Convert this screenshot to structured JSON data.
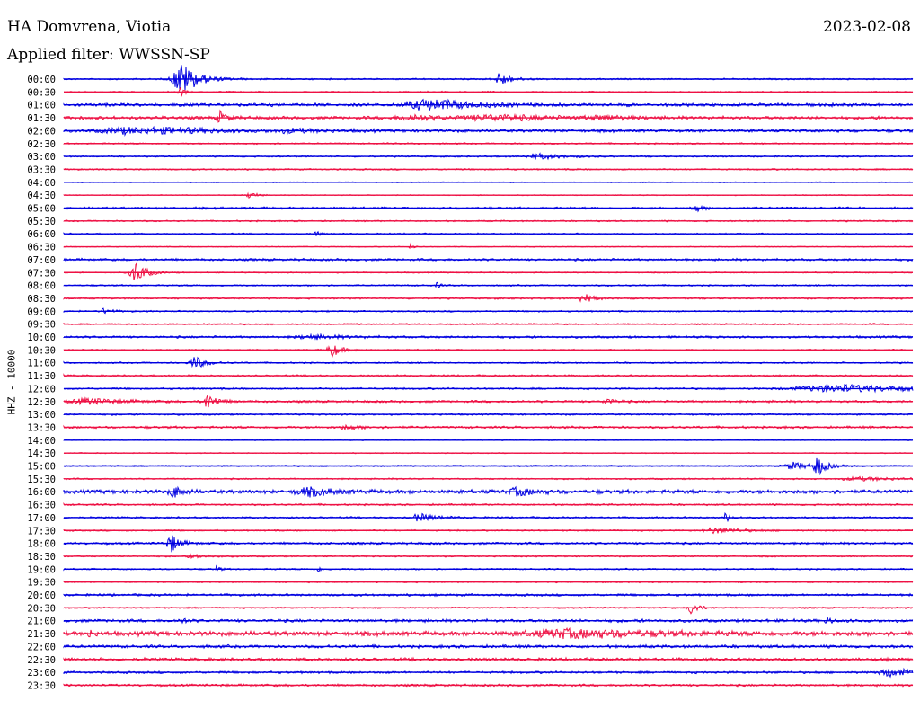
{
  "header": {
    "station": "HA Domvrena, Viotia",
    "date": "2023-02-08",
    "filter": "Applied filter: WWSSN-SP"
  },
  "chart_data": {
    "type": "line",
    "title": "HA Domvrena, Viotia",
    "ylabel": "HHZ - 10000",
    "colors": [
      "#0000e0",
      "#ee1144"
    ],
    "rows": [
      "00:00",
      "00:30",
      "01:00",
      "01:30",
      "02:00",
      "02:30",
      "03:00",
      "03:30",
      "04:00",
      "04:30",
      "05:00",
      "05:30",
      "06:00",
      "06:30",
      "07:00",
      "07:30",
      "08:00",
      "08:30",
      "09:00",
      "09:30",
      "10:00",
      "10:30",
      "11:00",
      "11:30",
      "12:00",
      "12:30",
      "13:00",
      "13:30",
      "14:00",
      "14:30",
      "15:00",
      "15:30",
      "16:00",
      "16:30",
      "17:00",
      "17:30",
      "18:00",
      "18:30",
      "19:00",
      "19:30",
      "20:00",
      "20:30",
      "21:00",
      "21:30",
      "22:00",
      "22:30",
      "23:00",
      "23:30"
    ],
    "noise": [
      1,
      1,
      2,
      2,
      2,
      1,
      1,
      1,
      0.6,
      0.6,
      1.5,
      1,
      1,
      0.6,
      1.5,
      0.8,
      1,
      1.2,
      1,
      1,
      1.5,
      1,
      1,
      1.2,
      1.2,
      1.5,
      1.2,
      1.5,
      0.6,
      0.6,
      1,
      1,
      2.5,
      1.2,
      1.2,
      1,
      1.5,
      1,
      1,
      1,
      1.5,
      1,
      2,
      3,
      2,
      2,
      1.5,
      1.5
    ],
    "events": [
      {
        "row": 0,
        "x": 0.139,
        "amp": 18,
        "width": 0.02
      },
      {
        "row": 0,
        "x": 0.515,
        "amp": 8,
        "width": 0.012
      },
      {
        "row": 1,
        "x": 0.138,
        "amp": 5,
        "width": 0.005
      },
      {
        "row": 2,
        "x": 0.432,
        "amp": 6,
        "width": 0.05
      },
      {
        "row": 3,
        "x": 0.185,
        "amp": 7,
        "width": 0.008
      },
      {
        "row": 3,
        "x": 0.408,
        "amp": 3,
        "width": 0.03
      },
      {
        "row": 3,
        "x": 0.51,
        "amp": 3,
        "width": 0.07
      },
      {
        "row": 3,
        "x": 0.635,
        "amp": 2,
        "width": 0.03
      },
      {
        "row": 4,
        "x": 0.07,
        "amp": 3,
        "width": 0.05
      },
      {
        "row": 4,
        "x": 0.13,
        "amp": 2,
        "width": 0.07
      },
      {
        "row": 4,
        "x": 0.27,
        "amp": 2,
        "width": 0.03
      },
      {
        "row": 6,
        "x": 0.56,
        "amp": 3,
        "width": 0.03
      },
      {
        "row": 9,
        "x": 0.22,
        "amp": 5,
        "width": 0.007
      },
      {
        "row": 10,
        "x": 0.744,
        "amp": 4,
        "width": 0.008
      },
      {
        "row": 12,
        "x": 0.298,
        "amp": 3,
        "width": 0.005
      },
      {
        "row": 13,
        "x": 0.409,
        "amp": 4,
        "width": 0.003
      },
      {
        "row": 15,
        "x": 0.085,
        "amp": 13,
        "width": 0.012
      },
      {
        "row": 16,
        "x": 0.44,
        "amp": 3,
        "width": 0.004
      },
      {
        "row": 17,
        "x": 0.612,
        "amp": 5,
        "width": 0.012
      },
      {
        "row": 18,
        "x": 0.048,
        "amp": 3,
        "width": 0.01
      },
      {
        "row": 20,
        "x": 0.295,
        "amp": 2,
        "width": 0.04
      },
      {
        "row": 21,
        "x": 0.316,
        "amp": 8,
        "width": 0.01
      },
      {
        "row": 22,
        "x": 0.155,
        "amp": 7,
        "width": 0.012
      },
      {
        "row": 24,
        "x": 0.92,
        "amp": 4,
        "width": 0.1
      },
      {
        "row": 25,
        "x": 0.17,
        "amp": 9,
        "width": 0.01
      },
      {
        "row": 25,
        "x": 0.03,
        "amp": 3,
        "width": 0.04
      },
      {
        "row": 25,
        "x": 0.64,
        "amp": 3,
        "width": 0.01
      },
      {
        "row": 27,
        "x": 0.335,
        "amp": 2,
        "width": 0.02
      },
      {
        "row": 30,
        "x": 0.888,
        "amp": 10,
        "width": 0.01
      },
      {
        "row": 30,
        "x": 0.86,
        "amp": 4,
        "width": 0.02
      },
      {
        "row": 31,
        "x": 0.94,
        "amp": 2,
        "width": 0.04
      },
      {
        "row": 32,
        "x": 0.13,
        "amp": 6,
        "width": 0.01
      },
      {
        "row": 32,
        "x": 0.29,
        "amp": 4,
        "width": 0.03
      },
      {
        "row": 32,
        "x": 0.535,
        "amp": 4,
        "width": 0.02
      },
      {
        "row": 34,
        "x": 0.42,
        "amp": 4,
        "width": 0.02
      },
      {
        "row": 34,
        "x": 0.78,
        "amp": 6,
        "width": 0.004
      },
      {
        "row": 35,
        "x": 0.77,
        "amp": 3,
        "width": 0.03
      },
      {
        "row": 36,
        "x": 0.127,
        "amp": 10,
        "width": 0.01
      },
      {
        "row": 37,
        "x": 0.155,
        "amp": 2,
        "width": 0.02
      },
      {
        "row": 38,
        "x": 0.18,
        "amp": 4,
        "width": 0.004
      },
      {
        "row": 38,
        "x": 0.3,
        "amp": 3,
        "width": 0.003
      },
      {
        "row": 41,
        "x": 0.74,
        "amp": 8,
        "width": 0.008
      },
      {
        "row": 42,
        "x": 0.14,
        "amp": 4,
        "width": 0.004
      },
      {
        "row": 42,
        "x": 0.9,
        "amp": 4,
        "width": 0.005
      },
      {
        "row": 43,
        "x": 0.03,
        "amp": 4,
        "width": 0.004
      },
      {
        "row": 43,
        "x": 0.6,
        "amp": 4,
        "width": 0.1
      },
      {
        "row": 46,
        "x": 0.975,
        "amp": 4,
        "width": 0.03
      }
    ]
  }
}
